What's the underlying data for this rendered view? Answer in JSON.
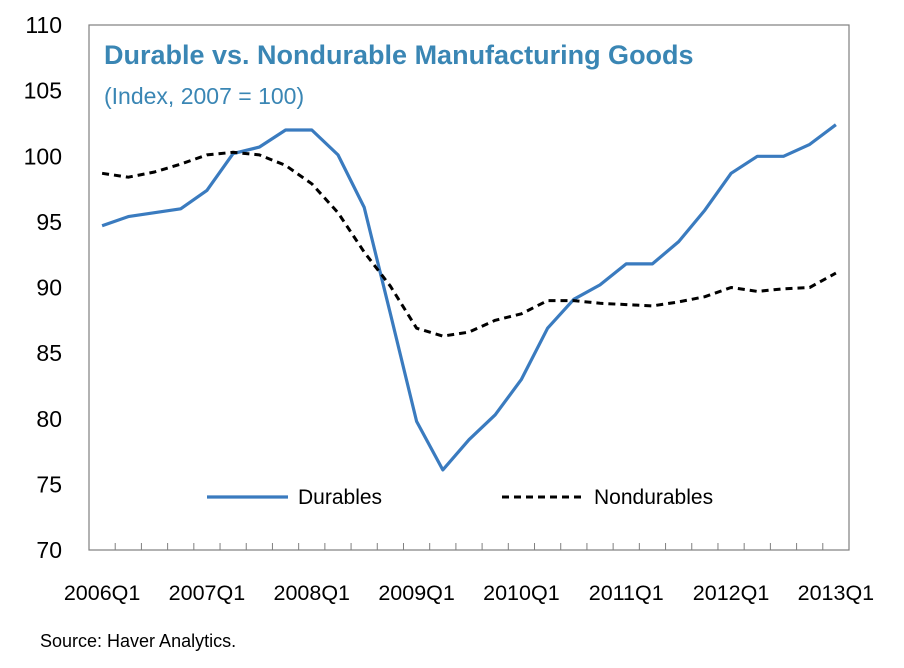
{
  "chart_data": {
    "type": "line",
    "title": "Durable vs. Nondurable Manufacturing Goods",
    "subtitle": "(Index, 2007 = 100)",
    "ylim": [
      70,
      110
    ],
    "yticks": [
      70,
      75,
      80,
      85,
      90,
      95,
      100,
      105,
      110
    ],
    "x_tick_labels": [
      "2006Q1",
      "2007Q1",
      "2008Q1",
      "2009Q1",
      "2010Q1",
      "2011Q1",
      "2012Q1",
      "2013Q1"
    ],
    "x": [
      "2006Q1",
      "2006Q2",
      "2006Q3",
      "2006Q4",
      "2007Q1",
      "2007Q2",
      "2007Q3",
      "2007Q4",
      "2008Q1",
      "2008Q2",
      "2008Q3",
      "2008Q4",
      "2009Q1",
      "2009Q2",
      "2009Q3",
      "2009Q4",
      "2010Q1",
      "2010Q2",
      "2010Q3",
      "2010Q4",
      "2011Q1",
      "2011Q2",
      "2011Q3",
      "2011Q4",
      "2012Q1",
      "2012Q2",
      "2012Q3",
      "2012Q4",
      "2013Q1"
    ],
    "series": [
      {
        "name": "Durables",
        "color": "#3a7bbf",
        "style": "solid",
        "values": [
          94.7,
          95.4,
          95.7,
          96.0,
          97.4,
          100.2,
          100.7,
          102.0,
          102.0,
          100.1,
          96.1,
          88.0,
          79.8,
          76.1,
          78.4,
          80.3,
          83.0,
          86.9,
          89.1,
          90.2,
          91.8,
          91.8,
          93.5,
          95.9,
          98.7,
          100.0,
          100.0,
          100.9,
          102.4
        ]
      },
      {
        "name": "Nondurables",
        "color": "#000000",
        "style": "dashed",
        "values": [
          98.7,
          98.4,
          98.8,
          99.4,
          100.1,
          100.3,
          100.1,
          99.3,
          97.9,
          95.7,
          92.7,
          90.1,
          86.9,
          86.3,
          86.6,
          87.5,
          88.0,
          89.0,
          89.0,
          88.8,
          88.7,
          88.6,
          88.9,
          89.3,
          90.0,
          89.7,
          89.9,
          90.0,
          91.1
        ]
      }
    ],
    "grid": false,
    "legend_position": "bottom-center"
  },
  "source": "Source: Haver Analytics."
}
